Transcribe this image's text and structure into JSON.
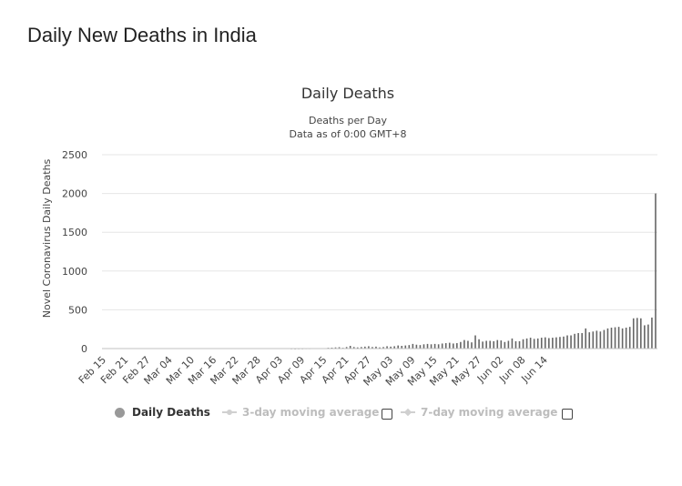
{
  "page": {
    "title": "Daily New Deaths in India"
  },
  "chart_data": {
    "type": "bar",
    "title": "Daily Deaths",
    "subtitle_lines": [
      "Deaths per Day",
      "Data as of 0:00 GMT+8"
    ],
    "xlabel": "",
    "ylabel": "Novel Coronavirus Daily Deaths",
    "ylim": [
      0,
      2500
    ],
    "yticks": [
      0,
      500,
      1000,
      1500,
      2000,
      2500
    ],
    "xtick_labels": [
      "Feb 15",
      "Feb 21",
      "Feb 27",
      "Mar 04",
      "Mar 10",
      "Mar 16",
      "Mar 22",
      "Mar 28",
      "Apr 03",
      "Apr 09",
      "Apr 15",
      "Apr 21",
      "Apr 27",
      "May 03",
      "May 09",
      "May 15",
      "May 21",
      "May 27",
      "Jun 02",
      "Jun 08",
      "Jun 14"
    ],
    "x_start": "Feb 15",
    "x_end": "Jun 16",
    "grid": true,
    "bar_color": "#666666",
    "series": [
      {
        "name": "Daily Deaths",
        "values": [
          0,
          0,
          0,
          0,
          0,
          0,
          0,
          0,
          0,
          0,
          0,
          0,
          0,
          0,
          0,
          0,
          0,
          0,
          0,
          0,
          0,
          0,
          0,
          0,
          0,
          0,
          0,
          0,
          0,
          0,
          0,
          0,
          0,
          0,
          0,
          0,
          0,
          0,
          0,
          0,
          0,
          0,
          0,
          0,
          0,
          0,
          0,
          0,
          0,
          0,
          0,
          2,
          1,
          2,
          2,
          3,
          3,
          5,
          5,
          5,
          5,
          10,
          12,
          15,
          18,
          10,
          20,
          35,
          20,
          15,
          20,
          25,
          30,
          20,
          25,
          15,
          20,
          30,
          25,
          30,
          40,
          35,
          40,
          45,
          60,
          50,
          45,
          55,
          60,
          55,
          60,
          55,
          65,
          70,
          75,
          65,
          70,
          85,
          110,
          100,
          80,
          170,
          120,
          90,
          100,
          100,
          95,
          110,
          105,
          85,
          100,
          130,
          95,
          95,
          120,
          130,
          140,
          125,
          130,
          140,
          145,
          135,
          140,
          145,
          150,
          155,
          170,
          170,
          190,
          200,
          200,
          260,
          210,
          220,
          230,
          220,
          240,
          260,
          270,
          275,
          280,
          260,
          270,
          280,
          390,
          395,
          390,
          300,
          310,
          400,
          2000
        ]
      }
    ],
    "legend": {
      "placement": "bottom",
      "items": [
        {
          "label": "Daily Deaths",
          "active": true
        },
        {
          "label": "3-day moving average",
          "active": false
        },
        {
          "label": "7-day moving average",
          "active": false
        }
      ]
    }
  }
}
